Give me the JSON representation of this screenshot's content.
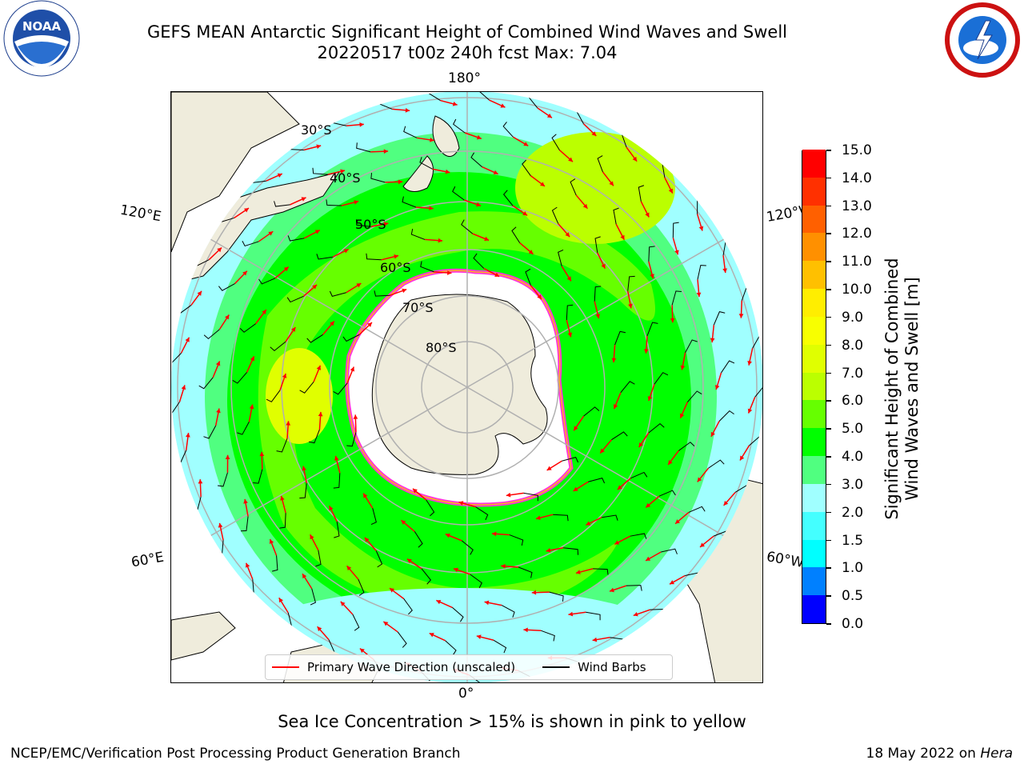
{
  "header": {
    "title_line1": "GEFS MEAN Antarctic Significant Height of Combined Wind Waves and Swell",
    "title_line2": "20220517 t00z 240h fcst   Max: 7.04"
  },
  "logos": {
    "left": "NOAA",
    "right": "NATIONAL WEATHER SERVICE"
  },
  "map": {
    "projection": "south-polar-stereographic",
    "longitude_labels": {
      "top": "180°",
      "bottom": "0°",
      "upper_left": "120°E",
      "lower_left": "60°E",
      "upper_right": "120°W",
      "lower_right": "60°W"
    },
    "latitude_labels": [
      "30°S",
      "40°S",
      "50°S",
      "60°S",
      "70°S",
      "80°S"
    ],
    "colors": {
      "land": "#efecdc",
      "ice": "#ffffff",
      "ice_edge": "#ff33dd",
      "ice_edge_inner": "#ffb020",
      "arrow": "#ff0000",
      "barb": "#000000",
      "grid": "#b0b0b0"
    }
  },
  "colorbar": {
    "title_line1": "Significant Height of Combined",
    "title_line2": "Wind Waves and Swell [m]",
    "tick_labels": [
      "0.0",
      "0.5",
      "1.0",
      "1.5",
      "2.0",
      "3.0",
      "4.0",
      "5.0",
      "6.0",
      "7.0",
      "8.0",
      "9.0",
      "10.0",
      "11.0",
      "12.0",
      "13.0",
      "14.0",
      "15.0"
    ],
    "colors": [
      "#0000ff",
      "#0080ff",
      "#00ffff",
      "#44ffff",
      "#a0ffff",
      "#50ff80",
      "#00ff00",
      "#66ff00",
      "#bbff00",
      "#e0ff00",
      "#f8ff00",
      "#ffee00",
      "#ffc000",
      "#ff9000",
      "#ff6000",
      "#ff3000",
      "#ff0000"
    ]
  },
  "legend": {
    "items": [
      {
        "label": "Primary Wave Direction (unscaled)",
        "color": "#ff0000"
      },
      {
        "label": "Wind Barbs",
        "color": "#000000"
      }
    ]
  },
  "note": "Sea Ice Concentration > 15% is shown in pink to yellow",
  "footer": {
    "left": "NCEP/EMC/Verification Post Processing Product Generation Branch",
    "right_prefix": "18 May 2022 on ",
    "right_host": "Hera"
  }
}
